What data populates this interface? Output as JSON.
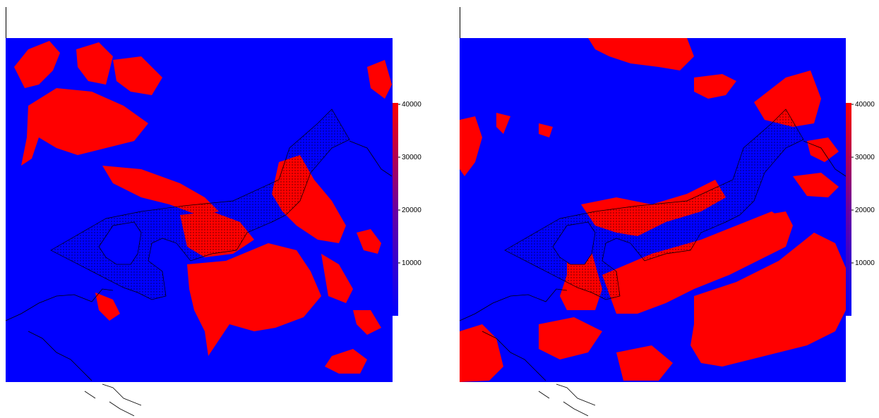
{
  "panels": [
    {
      "id": "left",
      "colorbar": {
        "ticks": [
          "40000",
          "30000",
          "20000",
          "10000"
        ],
        "low_color": "#0000ff",
        "high_color": "#ff0000"
      }
    },
    {
      "id": "right",
      "colorbar": {
        "ticks": [
          "40000",
          "30000",
          "20000",
          "10000"
        ],
        "low_color": "#0000ff",
        "high_color": "#ff0000"
      }
    }
  ],
  "colors": {
    "background_field": "#0000ff",
    "high_value": "#ff0000",
    "outline": "#000000"
  }
}
